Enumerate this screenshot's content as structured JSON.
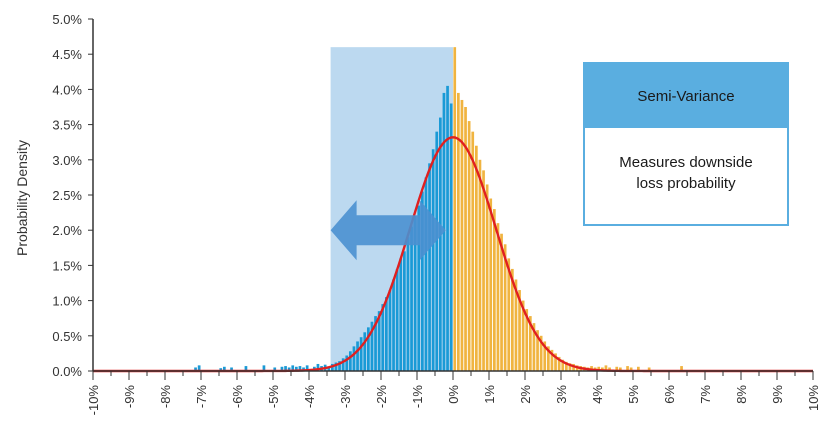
{
  "chart_data": {
    "type": "bar",
    "title": "",
    "xlabel": "",
    "ylabel": "Probability Density",
    "xlim": [
      -10,
      10
    ],
    "ylim": [
      0,
      5
    ],
    "x_ticks": [
      "-10%",
      "-9%",
      "-8%",
      "-7%",
      "-6%",
      "-5%",
      "-4%",
      "-3%",
      "-2%",
      "-1%",
      "0%",
      "1%",
      "2%",
      "3%",
      "4%",
      "5%",
      "6%",
      "7%",
      "8%",
      "9%",
      "10%"
    ],
    "y_ticks": [
      "0.0%",
      "0.5%",
      "1.0%",
      "1.5%",
      "2.0%",
      "2.5%",
      "3.0%",
      "3.5%",
      "4.0%",
      "4.5%",
      "5.0%"
    ],
    "bin_width": 0.1,
    "series": [
      {
        "part": "downside",
        "color": "#1a9ad6",
        "x": [
          -7.2,
          -7.1,
          -6.5,
          -6.4,
          -6.2,
          -5.8,
          -5.3,
          -5.0,
          -4.8,
          -4.7,
          -4.6,
          -4.5,
          -4.4,
          -4.3,
          -4.2,
          -4.1,
          -3.9,
          -3.8,
          -3.7,
          -3.6,
          -3.5,
          -3.4,
          -3.3,
          -3.2,
          -3.1,
          -3.0,
          -2.9,
          -2.8,
          -2.7,
          -2.6,
          -2.5,
          -2.4,
          -2.3,
          -2.2,
          -2.1,
          -2.0,
          -1.9,
          -1.8,
          -1.7,
          -1.6,
          -1.5,
          -1.4,
          -1.3,
          -1.2,
          -1.1,
          -1.0,
          -0.9,
          -0.8,
          -0.7,
          -0.6,
          -0.5,
          -0.4,
          -0.3,
          -0.2,
          -0.1
        ],
        "values": [
          0.05,
          0.08,
          0.04,
          0.06,
          0.05,
          0.07,
          0.08,
          0.05,
          0.06,
          0.07,
          0.05,
          0.08,
          0.06,
          0.07,
          0.05,
          0.08,
          0.06,
          0.1,
          0.07,
          0.09,
          0.06,
          0.1,
          0.12,
          0.14,
          0.18,
          0.22,
          0.28,
          0.35,
          0.42,
          0.48,
          0.55,
          0.62,
          0.7,
          0.78,
          0.85,
          0.95,
          1.05,
          1.15,
          1.3,
          1.45,
          1.6,
          1.7,
          1.9,
          2.05,
          2.2,
          2.35,
          2.55,
          2.75,
          2.95,
          3.15,
          3.4,
          3.6,
          3.95,
          4.05,
          3.8
        ]
      },
      {
        "part": "upside",
        "color": "#f0b440",
        "x": [
          0.0,
          0.1,
          0.2,
          0.3,
          0.4,
          0.5,
          0.6,
          0.7,
          0.8,
          0.9,
          1.0,
          1.1,
          1.2,
          1.3,
          1.4,
          1.5,
          1.6,
          1.7,
          1.8,
          1.9,
          2.0,
          2.1,
          2.2,
          2.3,
          2.4,
          2.5,
          2.6,
          2.7,
          2.8,
          2.9,
          3.0,
          3.1,
          3.2,
          3.3,
          3.4,
          3.5,
          3.6,
          3.7,
          3.8,
          3.9,
          4.0,
          4.1,
          4.2,
          4.3,
          4.5,
          4.6,
          4.8,
          4.9,
          5.1,
          5.4,
          6.3
        ],
        "values": [
          4.6,
          3.95,
          3.85,
          3.75,
          3.55,
          3.4,
          3.2,
          3.0,
          2.85,
          2.65,
          2.45,
          2.3,
          2.1,
          1.95,
          1.8,
          1.6,
          1.45,
          1.3,
          1.15,
          1.0,
          0.88,
          0.78,
          0.68,
          0.58,
          0.5,
          0.42,
          0.35,
          0.3,
          0.25,
          0.2,
          0.16,
          0.13,
          0.11,
          0.1,
          0.08,
          0.07,
          0.06,
          0.05,
          0.07,
          0.05,
          0.06,
          0.05,
          0.08,
          0.05,
          0.06,
          0.05,
          0.07,
          0.05,
          0.06,
          0.05,
          0.07
        ]
      }
    ],
    "normal_curve": {
      "color": "#e02020",
      "mean": 0.0,
      "sd": 1.2,
      "peak": 3.32
    },
    "highlight_region": {
      "x_from": -3.4,
      "x_to": 0,
      "height": 4.6,
      "color": "#bcd9f0"
    },
    "arrow": {
      "direction": "both",
      "x_from": -3.4,
      "x_to": -0.2,
      "y": 2.0,
      "color": "#4a90d0"
    },
    "grid": false
  },
  "info_box": {
    "title": "Semi-Variance",
    "line1": "Measures downside",
    "line2": "loss probability"
  }
}
